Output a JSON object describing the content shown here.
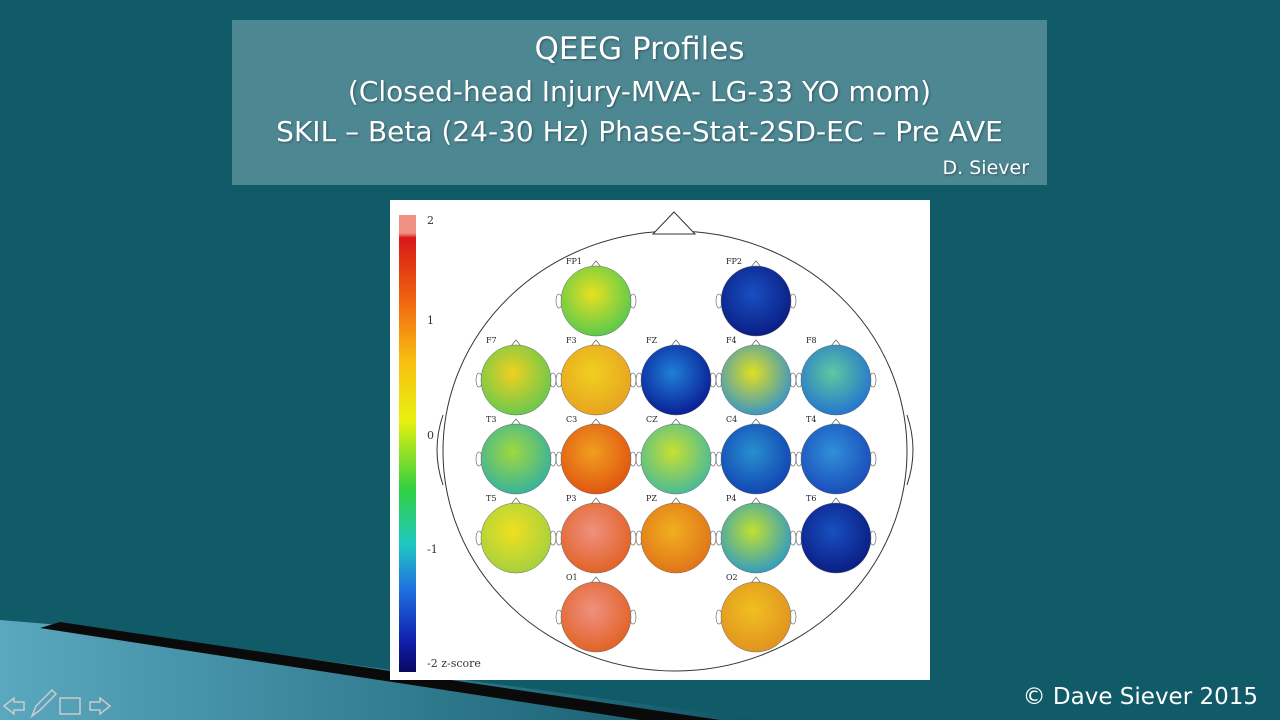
{
  "slide": {
    "title": "QEEG Profiles",
    "subtitle": "(Closed-head Injury-MVA- LG-33 YO mom)",
    "subtitle2": "SKIL – Beta (24-30 Hz) Phase-Stat-2SD-EC – Pre AVE",
    "author": "D. Siever",
    "footer": "©  Dave Siever 2015"
  },
  "figure": {
    "scale_labels": [
      "2",
      "1",
      "0",
      "-1",
      "-2 z-score"
    ],
    "electrodes": [
      "FP1",
      "FP2",
      "F7",
      "F3",
      "FZ",
      "F4",
      "F8",
      "T3",
      "C3",
      "CZ",
      "C4",
      "T4",
      "T5",
      "P3",
      "PZ",
      "P4",
      "T6",
      "O1",
      "O2"
    ]
  }
}
